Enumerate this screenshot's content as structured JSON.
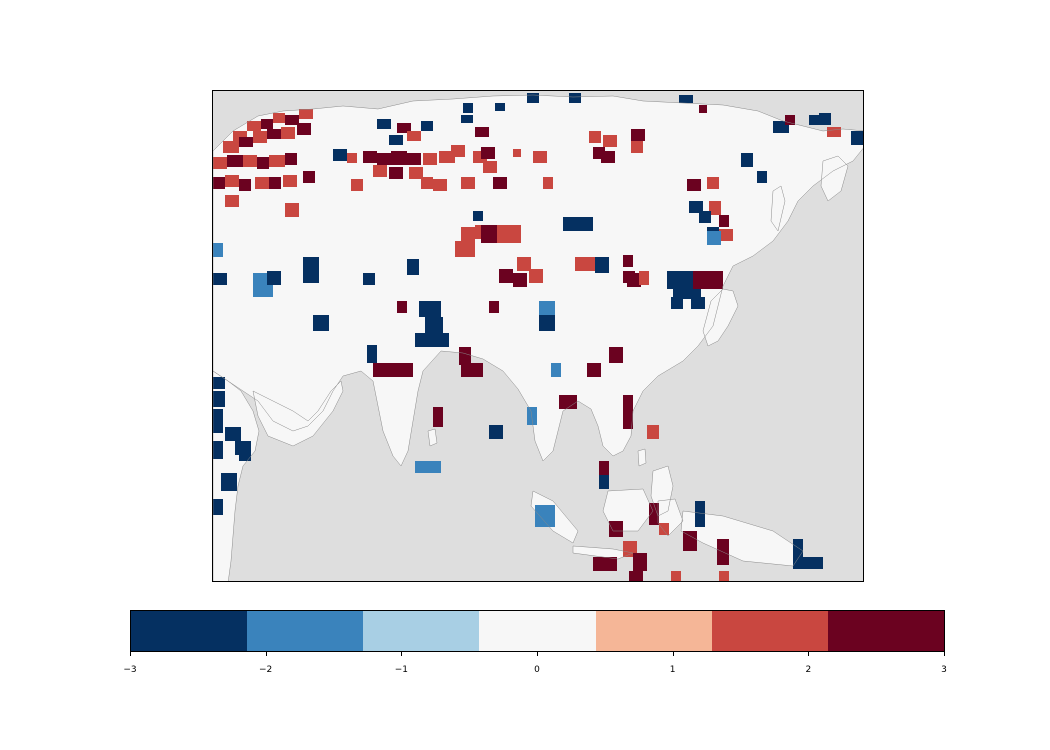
{
  "map": {
    "background_color": "#dedede",
    "land_color": "#f7f7f7",
    "coastline_color": "#8a8a8a",
    "field": {
      "cmap": [
        "#053061",
        "#3a83bc",
        "#a8cfe4",
        "#f7f7f7",
        "#f5b697",
        "#c94740",
        "#6b0220"
      ],
      "vmin": -3,
      "vmax": 3
    }
  },
  "colorbar": {
    "colors": [
      "#053061",
      "#3a83bc",
      "#a8cfe4",
      "#f7f7f7",
      "#f5b697",
      "#c94740",
      "#6b0220"
    ],
    "ticks": [
      -3,
      -2,
      -1,
      0,
      1,
      2,
      3
    ],
    "tick_labels": [
      "−3",
      "−2",
      "−1",
      "0",
      "1",
      "2",
      "3"
    ]
  }
}
